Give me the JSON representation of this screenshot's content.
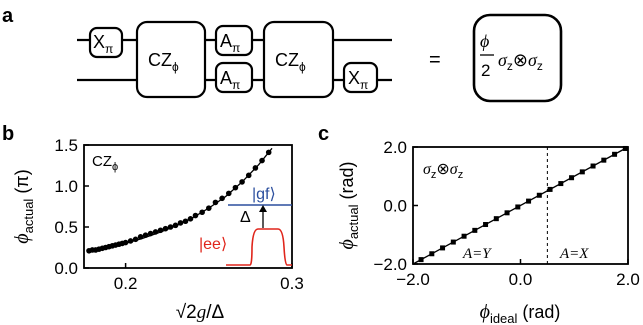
{
  "panel_labels": {
    "a": "a",
    "b": "b",
    "c": "c"
  },
  "circuit": {
    "gates": {
      "x_top": {
        "main": "X",
        "sub": "π"
      },
      "cz1": {
        "main": "CZ",
        "sub": "ϕ"
      },
      "a_top": {
        "main": "A",
        "sub": "π"
      },
      "a_bot": {
        "main": "A",
        "sub": "π"
      },
      "cz2": {
        "main": "CZ",
        "sub": "ϕ"
      },
      "x_bot": {
        "main": "X",
        "sub": "π"
      }
    },
    "equals": "=",
    "equivalent": {
      "num": "ϕ",
      "den": "2",
      "sigma": "σ",
      "z": "z",
      "otimes": "⊗"
    }
  },
  "chart_data": [
    {
      "type": "scatter",
      "panel": "b",
      "title": "",
      "inset_label": {
        "main": "CZ",
        "sub": "ϕ"
      },
      "xlabel": {
        "pre": "√2",
        "g": "g",
        "post": "/Δ"
      },
      "ylabel": {
        "phi": "ϕ",
        "sub": "actual",
        "unit": "(π)"
      },
      "xlim": [
        0.175,
        0.3
      ],
      "ylim": [
        0,
        1.5
      ],
      "xticks": [
        "0.2",
        "0.3"
      ],
      "xtick_values": [
        0.2,
        0.3
      ],
      "yticks": [
        "0.0",
        "0.5",
        "1.0",
        "1.5"
      ],
      "ytick_values": [
        0,
        0.5,
        1.0,
        1.5
      ],
      "series": [
        {
          "kind": "data",
          "x": [
            0.178,
            0.18,
            0.182,
            0.184,
            0.186,
            0.188,
            0.19,
            0.192,
            0.194,
            0.196,
            0.198,
            0.2,
            0.203,
            0.206,
            0.209,
            0.212,
            0.215,
            0.218,
            0.221,
            0.224,
            0.227,
            0.23,
            0.233,
            0.236,
            0.239,
            0.242,
            0.246,
            0.25,
            0.254,
            0.258,
            0.262,
            0.266,
            0.27,
            0.274,
            0.278,
            0.282,
            0.286
          ],
          "y": [
            0.21,
            0.22,
            0.22,
            0.23,
            0.24,
            0.25,
            0.26,
            0.27,
            0.28,
            0.29,
            0.3,
            0.31,
            0.33,
            0.35,
            0.38,
            0.4,
            0.42,
            0.44,
            0.46,
            0.48,
            0.5,
            0.52,
            0.55,
            0.57,
            0.6,
            0.64,
            0.68,
            0.73,
            0.8,
            0.85,
            0.91,
            0.98,
            1.05,
            1.13,
            1.22,
            1.31,
            1.41
          ]
        },
        {
          "kind": "fit",
          "x": [
            0.178,
            0.19,
            0.2,
            0.21,
            0.22,
            0.23,
            0.24,
            0.25,
            0.26,
            0.27,
            0.28,
            0.288
          ],
          "y": [
            0.2,
            0.25,
            0.3,
            0.36,
            0.43,
            0.51,
            0.61,
            0.73,
            0.87,
            1.05,
            1.26,
            1.46
          ]
        }
      ],
      "inset": {
        "gf": "|gf⟩",
        "ee": "|ee⟩",
        "delta": "Δ",
        "gf_color": "#2b4f9e",
        "ee_color": "#e0251b"
      }
    },
    {
      "type": "scatter",
      "panel": "c",
      "title": "",
      "inset_label": {
        "sigma": "σ",
        "z": "z",
        "otimes": "⊗"
      },
      "xlabel": {
        "phi": "ϕ",
        "sub": "ideal",
        "unit": "(rad)"
      },
      "ylabel": {
        "phi": "ϕ",
        "sub": "actual",
        "unit": "(rad)"
      },
      "xlim": [
        -2.0,
        2.0
      ],
      "ylim": [
        -2.0,
        2.0
      ],
      "xticks": [
        "−2.0",
        "0.0",
        "2.0"
      ],
      "xtick_values": [
        -2.0,
        0.0,
        2.0
      ],
      "yticks": [
        "−2.0",
        "0.0",
        "2.0"
      ],
      "ytick_values": [
        -2.0,
        0.0,
        2.0
      ],
      "divider_x": 0.5,
      "region_labels": [
        {
          "a": "A",
          "eq": "=",
          "v": "Y"
        },
        {
          "a": "A",
          "eq": "=",
          "v": "X"
        }
      ],
      "series": [
        {
          "kind": "data",
          "x": [
            -1.85,
            -1.65,
            -1.45,
            -1.25,
            -1.05,
            -0.85,
            -0.65,
            -0.45,
            -0.25,
            -0.05,
            0.15,
            0.35,
            0.55,
            0.75,
            0.95,
            1.15,
            1.35,
            1.55,
            1.75,
            1.95
          ],
          "y": [
            -1.85,
            -1.65,
            -1.45,
            -1.25,
            -1.05,
            -0.85,
            -0.65,
            -0.45,
            -0.25,
            -0.05,
            0.15,
            0.35,
            0.55,
            0.75,
            0.95,
            1.15,
            1.35,
            1.55,
            1.75,
            1.95
          ]
        },
        {
          "kind": "fit",
          "x": [
            -2.0,
            2.0
          ],
          "y": [
            -2.0,
            2.0
          ]
        }
      ]
    }
  ]
}
